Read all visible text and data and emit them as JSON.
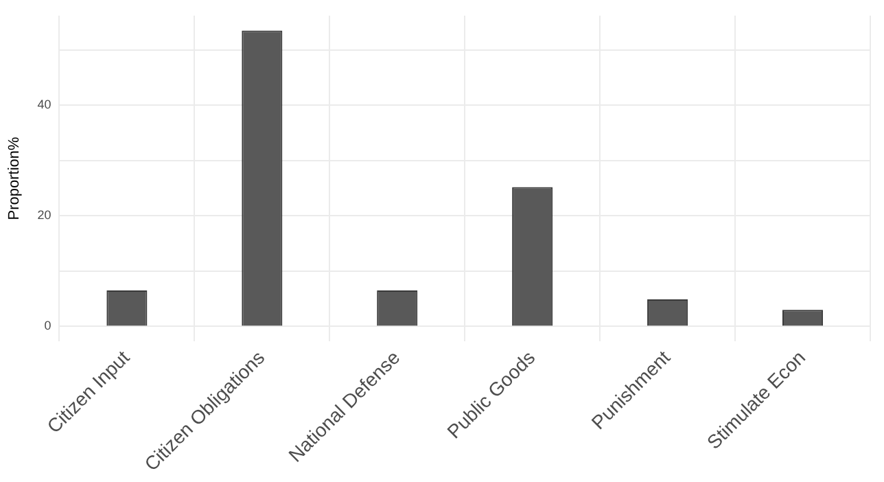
{
  "chart_data": {
    "type": "bar",
    "ylabel": "Proportion%",
    "categories": [
      "Citizen Input",
      "Citizen Obligations",
      "National Defense",
      "Public Goods",
      "Punishment",
      "Stimulate Econ"
    ],
    "values": [
      6.5,
      53.5,
      6.5,
      25.2,
      4.9,
      3.0
    ],
    "color": "#595959",
    "ylim": [
      -2.7,
      56.2
    ],
    "yticks": [
      0,
      {
        "value": 10,
        "label": null
      },
      20,
      {
        "value": 30,
        "label": null
      },
      40,
      {
        "value": 50,
        "label": null
      }
    ],
    "grid": true
  }
}
